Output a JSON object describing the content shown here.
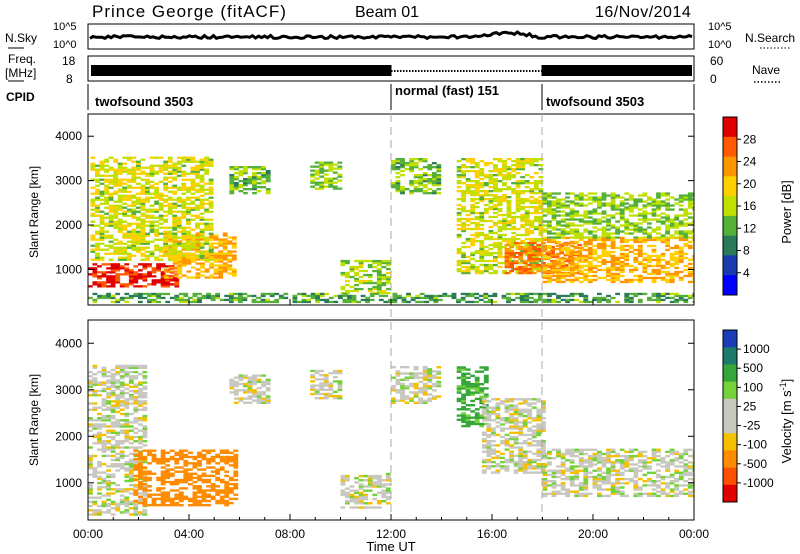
{
  "header": {
    "title": "Prince George (fitACF)",
    "beam": "Beam 01",
    "date": "16/Nov/2014"
  },
  "noise_panel": {
    "left_label": "N.Sky",
    "right_label": "N.Search",
    "left_ticks": [
      "10^5",
      "10^0"
    ],
    "right_ticks": [
      "10^5",
      "10^0"
    ]
  },
  "freq_panel": {
    "left_label_line1": "Freq.",
    "left_label_line2": "[MHz]",
    "right_label": "Nave",
    "left_ticks": [
      "18",
      "8"
    ],
    "right_ticks": [
      "60",
      "0"
    ]
  },
  "cpid_panel": {
    "label": "CPID",
    "modes": [
      {
        "name": "twofsound 3503",
        "start_hour": 0,
        "end_hour": 12
      },
      {
        "name": "normal (fast) 151",
        "start_hour": 12,
        "end_hour": 18
      },
      {
        "name": "twofsound 3503",
        "start_hour": 18,
        "end_hour": 24
      }
    ]
  },
  "x_axis": {
    "label": "Time UT",
    "tick_labels": [
      "00:00",
      "04:00",
      "08:00",
      "12:00",
      "16:00",
      "20:00",
      "00:00"
    ]
  },
  "chart_data": [
    {
      "type": "heatmap",
      "name": "power",
      "ylabel": "Slant Range [km]",
      "xlim": [
        0,
        24
      ],
      "ylim": [
        200,
        4500
      ],
      "y_tick_labels": [
        "1000",
        "2000",
        "3000",
        "4000"
      ],
      "colorbar": {
        "label": "Power [dB]",
        "tick_labels": [
          "28",
          "24",
          "20",
          "16",
          "12",
          "8",
          "4"
        ],
        "colors": [
          "#e00000",
          "#ff5a00",
          "#ff9600",
          "#ffd000",
          "#bfe000",
          "#55b03a",
          "#2a7a5a",
          "#1a3ab0",
          "#0000ff"
        ]
      },
      "regions": [
        {
          "t": [
            0.0,
            3.6
          ],
          "r": [
            600,
            1100
          ],
          "value": 27
        },
        {
          "t": [
            3.0,
            5.8
          ],
          "r": [
            800,
            1800
          ],
          "value": 18
        },
        {
          "t": [
            0.1,
            4.8
          ],
          "r": [
            1200,
            3500
          ],
          "value": 13
        },
        {
          "t": [
            5.6,
            7.2
          ],
          "r": [
            2700,
            3300
          ],
          "value": 9
        },
        {
          "t": [
            8.8,
            9.9
          ],
          "r": [
            2800,
            3400
          ],
          "value": 10
        },
        {
          "t": [
            10.0,
            11.8
          ],
          "r": [
            450,
            1200
          ],
          "value": 11
        },
        {
          "t": [
            12.0,
            13.8
          ],
          "r": [
            2700,
            3500
          ],
          "value": 9
        },
        {
          "t": [
            14.6,
            18.0
          ],
          "r": [
            900,
            3500
          ],
          "value": 13
        },
        {
          "t": [
            16.5,
            19.5
          ],
          "r": [
            900,
            1600
          ],
          "value": 22
        },
        {
          "t": [
            18.0,
            24.0
          ],
          "r": [
            700,
            1700
          ],
          "value": 18
        },
        {
          "t": [
            18.0,
            24.0
          ],
          "r": [
            1700,
            2700
          ],
          "value": 10
        },
        {
          "t": [
            0.0,
            24.0
          ],
          "r": [
            250,
            450
          ],
          "value": 7
        }
      ]
    },
    {
      "type": "heatmap",
      "name": "velocity",
      "ylabel": "Slant Range [km]",
      "xlim": [
        0,
        24
      ],
      "ylim": [
        200,
        4500
      ],
      "y_tick_labels": [
        "1000",
        "2000",
        "3000",
        "4000"
      ],
      "colorbar": {
        "label": "Velocity [m s^-1]",
        "tick_labels": [
          "1000",
          "500",
          "100",
          "25",
          "-25",
          "-100",
          "-500",
          "-1000"
        ],
        "colors": [
          "#1c3cb8",
          "#1e7a6a",
          "#35a63a",
          "#74d23a",
          "#c8c8c0",
          "#c8c8c0",
          "#f5c000",
          "#ff8c00",
          "#ff5000",
          "#e00000"
        ]
      },
      "regions": [
        {
          "t": [
            0.0,
            2.3
          ],
          "r": [
            300,
            3500
          ],
          "value": 0
        },
        {
          "t": [
            1.8,
            5.8
          ],
          "r": [
            500,
            1700
          ],
          "value": -400
        },
        {
          "t": [
            5.6,
            7.2
          ],
          "r": [
            2700,
            3300
          ],
          "value": 0
        },
        {
          "t": [
            8.8,
            9.9
          ],
          "r": [
            2800,
            3400
          ],
          "value": 0
        },
        {
          "t": [
            10.0,
            11.8
          ],
          "r": [
            450,
            1200
          ],
          "value": 0
        },
        {
          "t": [
            12.0,
            13.8
          ],
          "r": [
            2700,
            3500
          ],
          "value": 0
        },
        {
          "t": [
            14.6,
            15.8
          ],
          "r": [
            2200,
            3500
          ],
          "value": 120
        },
        {
          "t": [
            15.6,
            18.0
          ],
          "r": [
            1200,
            2800
          ],
          "value": 0
        },
        {
          "t": [
            18.0,
            24.0
          ],
          "r": [
            700,
            1700
          ],
          "value": 0
        }
      ]
    }
  ]
}
